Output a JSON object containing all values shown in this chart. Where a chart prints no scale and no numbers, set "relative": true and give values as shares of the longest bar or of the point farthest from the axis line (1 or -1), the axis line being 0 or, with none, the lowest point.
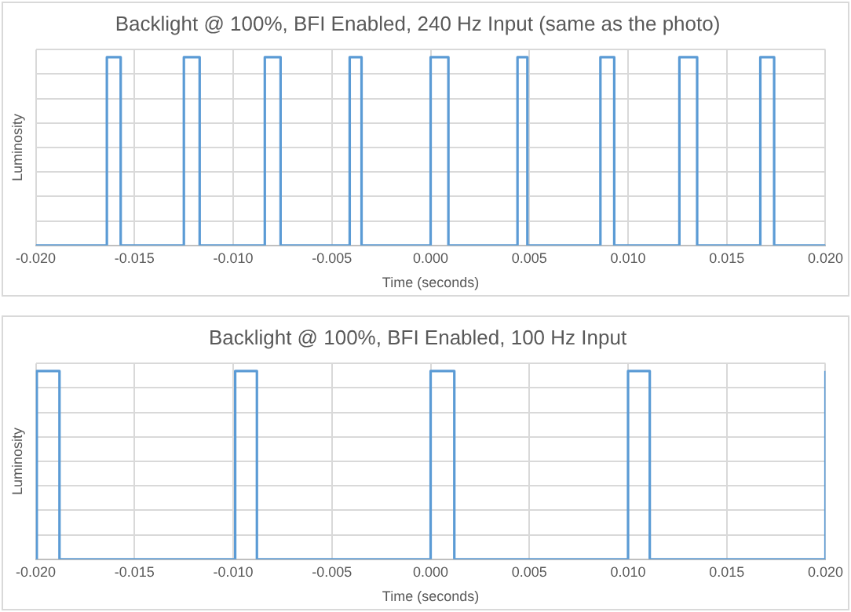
{
  "chart_data": [
    {
      "type": "line",
      "title": "Backlight @ 100%, BFI Enabled, 240 Hz Input (same as the photo)",
      "xlabel": "Time (seconds)",
      "ylabel": "Luminosity",
      "relative": true,
      "grid": true,
      "marker": "none",
      "xlim": [
        -0.02,
        0.02
      ],
      "xticks": [
        {
          "value": -0.02,
          "label": "-0.020"
        },
        {
          "value": -0.015,
          "label": "-0.015"
        },
        {
          "value": -0.01,
          "label": "-0.010"
        },
        {
          "value": -0.005,
          "label": "-0.005"
        },
        {
          "value": 0,
          "label": "0.000"
        },
        {
          "value": 0.005,
          "label": "0.005"
        },
        {
          "value": 0.01,
          "label": "0.010"
        },
        {
          "value": 0.015,
          "label": "0.015"
        },
        {
          "value": 0.02,
          "label": "0.020"
        }
      ],
      "series": [
        {
          "color": "#5b9bd5",
          "x": [
            -0.02,
            -0.0164,
            -0.0164,
            -0.0157,
            -0.0157,
            -0.0125,
            -0.0125,
            -0.0117,
            -0.0117,
            -0.0084,
            -0.0084,
            -0.0076,
            -0.0076,
            -0.0041,
            -0.0041,
            -0.0035,
            -0.0035,
            0.0,
            0.0,
            0.0009,
            0.0009,
            0.0044,
            0.0044,
            0.0049,
            0.0049,
            0.0086,
            0.0086,
            0.0093,
            0.0093,
            0.0126,
            0.0126,
            0.0135,
            0.0135,
            0.0167,
            0.0167,
            0.0174,
            0.0174,
            0.02
          ],
          "values": [
            0,
            0,
            1,
            1,
            0,
            0,
            1,
            1,
            0,
            0,
            1,
            1,
            0,
            0,
            1,
            1,
            0,
            0,
            1,
            1,
            0,
            0,
            1,
            1,
            0,
            0,
            1,
            1,
            0,
            0,
            1,
            1,
            0,
            0,
            1,
            1,
            0,
            0
          ]
        }
      ]
    },
    {
      "type": "line",
      "title": "Backlight @ 100%, BFI Enabled, 100 Hz Input",
      "xlabel": "Time (seconds)",
      "ylabel": "Luminosity",
      "relative": true,
      "grid": true,
      "marker": "none",
      "xlim": [
        -0.02,
        0.02
      ],
      "xticks": [
        {
          "value": -0.02,
          "label": "-0.020"
        },
        {
          "value": -0.015,
          "label": "-0.015"
        },
        {
          "value": -0.01,
          "label": "-0.010"
        },
        {
          "value": -0.005,
          "label": "-0.005"
        },
        {
          "value": 0,
          "label": "0.000"
        },
        {
          "value": 0.005,
          "label": "0.005"
        },
        {
          "value": 0.01,
          "label": "0.010"
        },
        {
          "value": 0.015,
          "label": "0.015"
        },
        {
          "value": 0.02,
          "label": "0.020"
        }
      ],
      "series": [
        {
          "color": "#5b9bd5",
          "x": [
            -0.02,
            -0.01995,
            -0.01995,
            -0.0188,
            -0.0188,
            -0.0099,
            -0.0099,
            -0.0088,
            -0.0088,
            0.0,
            0.0,
            0.0012,
            0.0012,
            0.01,
            0.01,
            0.0111,
            0.0111,
            0.02,
            0.02
          ],
          "values": [
            0,
            0,
            1,
            1,
            0,
            0,
            1,
            1,
            0,
            0,
            1,
            1,
            0,
            0,
            1,
            1,
            0,
            0,
            1
          ]
        }
      ]
    }
  ]
}
